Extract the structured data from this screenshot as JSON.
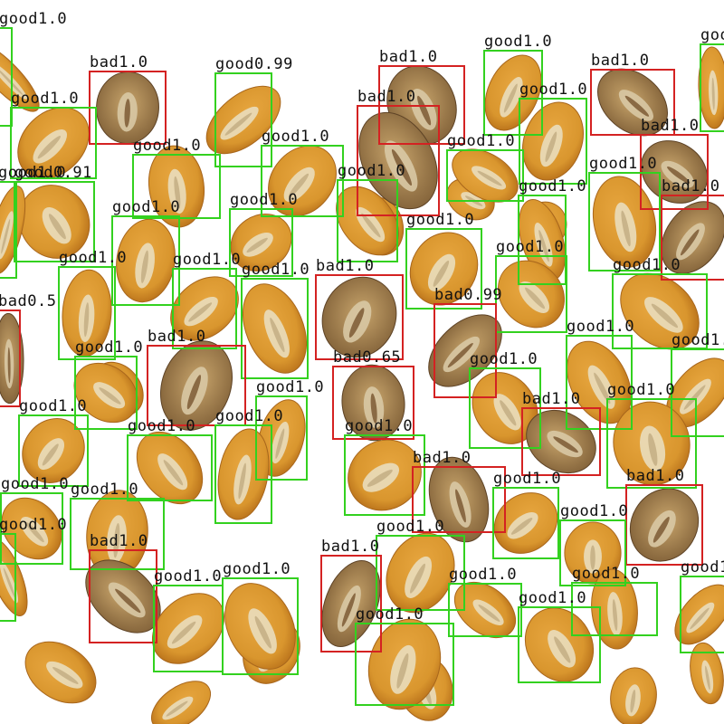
{
  "colors": {
    "good": "#33d11f",
    "bad": "#d42222",
    "background": "#ffffff",
    "kernel_fill": "#d9962e",
    "kernel_shade": "#b56d18",
    "germ": "#e9ddbd"
  },
  "detections": [
    {
      "label": "good",
      "score": "1.0"
    },
    {
      "label": "bad",
      "score": "1.0"
    },
    {
      "label": "good",
      "score": "0.99"
    },
    {
      "label": "bad",
      "score": "1.0"
    },
    {
      "label": "good",
      "score": "1.0"
    },
    {
      "label": "bad",
      "score": "1.0"
    },
    {
      "label": "good",
      "score": "1.0"
    },
    {
      "label": "good",
      "score": "1.0"
    },
    {
      "label": "bad",
      "score": "1.0"
    },
    {
      "label": "good",
      "score": "1.0"
    },
    {
      "label": "bad",
      "score": "1.0"
    },
    {
      "label": "good",
      "score": "1.0"
    },
    {
      "label": "good",
      "score": "1.0"
    },
    {
      "label": "good",
      "score": "0.91"
    },
    {
      "label": "good",
      "score": "1.0"
    },
    {
      "label": "good",
      "score": "1.0"
    },
    {
      "label": "good",
      "score": "1.0"
    },
    {
      "label": "bad",
      "score": "1.0"
    },
    {
      "label": "good",
      "score": "1.0"
    },
    {
      "label": "good",
      "score": "1.0"
    },
    {
      "label": "good",
      "score": "1.0"
    },
    {
      "label": "good",
      "score": "1.0"
    },
    {
      "label": "good",
      "score": "1.0"
    },
    {
      "label": "good",
      "score": "1.0"
    },
    {
      "label": "good",
      "score": "1.0"
    },
    {
      "label": "good",
      "score": "1.0"
    },
    {
      "label": "good",
      "score": "1.0"
    },
    {
      "label": "bad",
      "score": "1.0"
    },
    {
      "label": "good",
      "score": "1.0"
    },
    {
      "label": "bad",
      "score": "0.5"
    },
    {
      "label": "bad",
      "score": "0.99"
    },
    {
      "label": "good",
      "score": "1.0"
    },
    {
      "label": "bad",
      "score": "1.0"
    },
    {
      "label": "good",
      "score": "1.0"
    },
    {
      "label": "bad",
      "score": "0.65"
    },
    {
      "label": "good",
      "score": "1.0"
    },
    {
      "label": "good",
      "score": "1.0"
    },
    {
      "label": "good",
      "score": "1.0"
    },
    {
      "label": "bad",
      "score": "1.0"
    },
    {
      "label": "good",
      "score": "1.0"
    },
    {
      "label": "good",
      "score": "1.0"
    },
    {
      "label": "good",
      "score": "1.0"
    },
    {
      "label": "good",
      "score": "1.0"
    },
    {
      "label": "good",
      "score": "1.0"
    },
    {
      "label": "bad",
      "score": "1.0"
    },
    {
      "label": "bad",
      "score": "1.0"
    },
    {
      "label": "good",
      "score": "1.0"
    },
    {
      "label": "good",
      "score": "1.0"
    },
    {
      "label": "good",
      "score": "1.0"
    },
    {
      "label": "good",
      "score": "1.0"
    },
    {
      "label": "good",
      "score": "1.0"
    },
    {
      "label": "bad",
      "score": "1.0"
    },
    {
      "label": "good",
      "score": "1.0"
    },
    {
      "label": "good",
      "score": "1.0"
    },
    {
      "label": "good",
      "score": "1.0"
    },
    {
      "label": "bad",
      "score": "1.0"
    },
    {
      "label": "good",
      "score": "1.0"
    },
    {
      "label": "good",
      "score": "1.0"
    },
    {
      "label": "good",
      "score": "1.0"
    },
    {
      "label": "good",
      "score": "1.0"
    },
    {
      "label": "good",
      "score": "1.0"
    }
  ]
}
